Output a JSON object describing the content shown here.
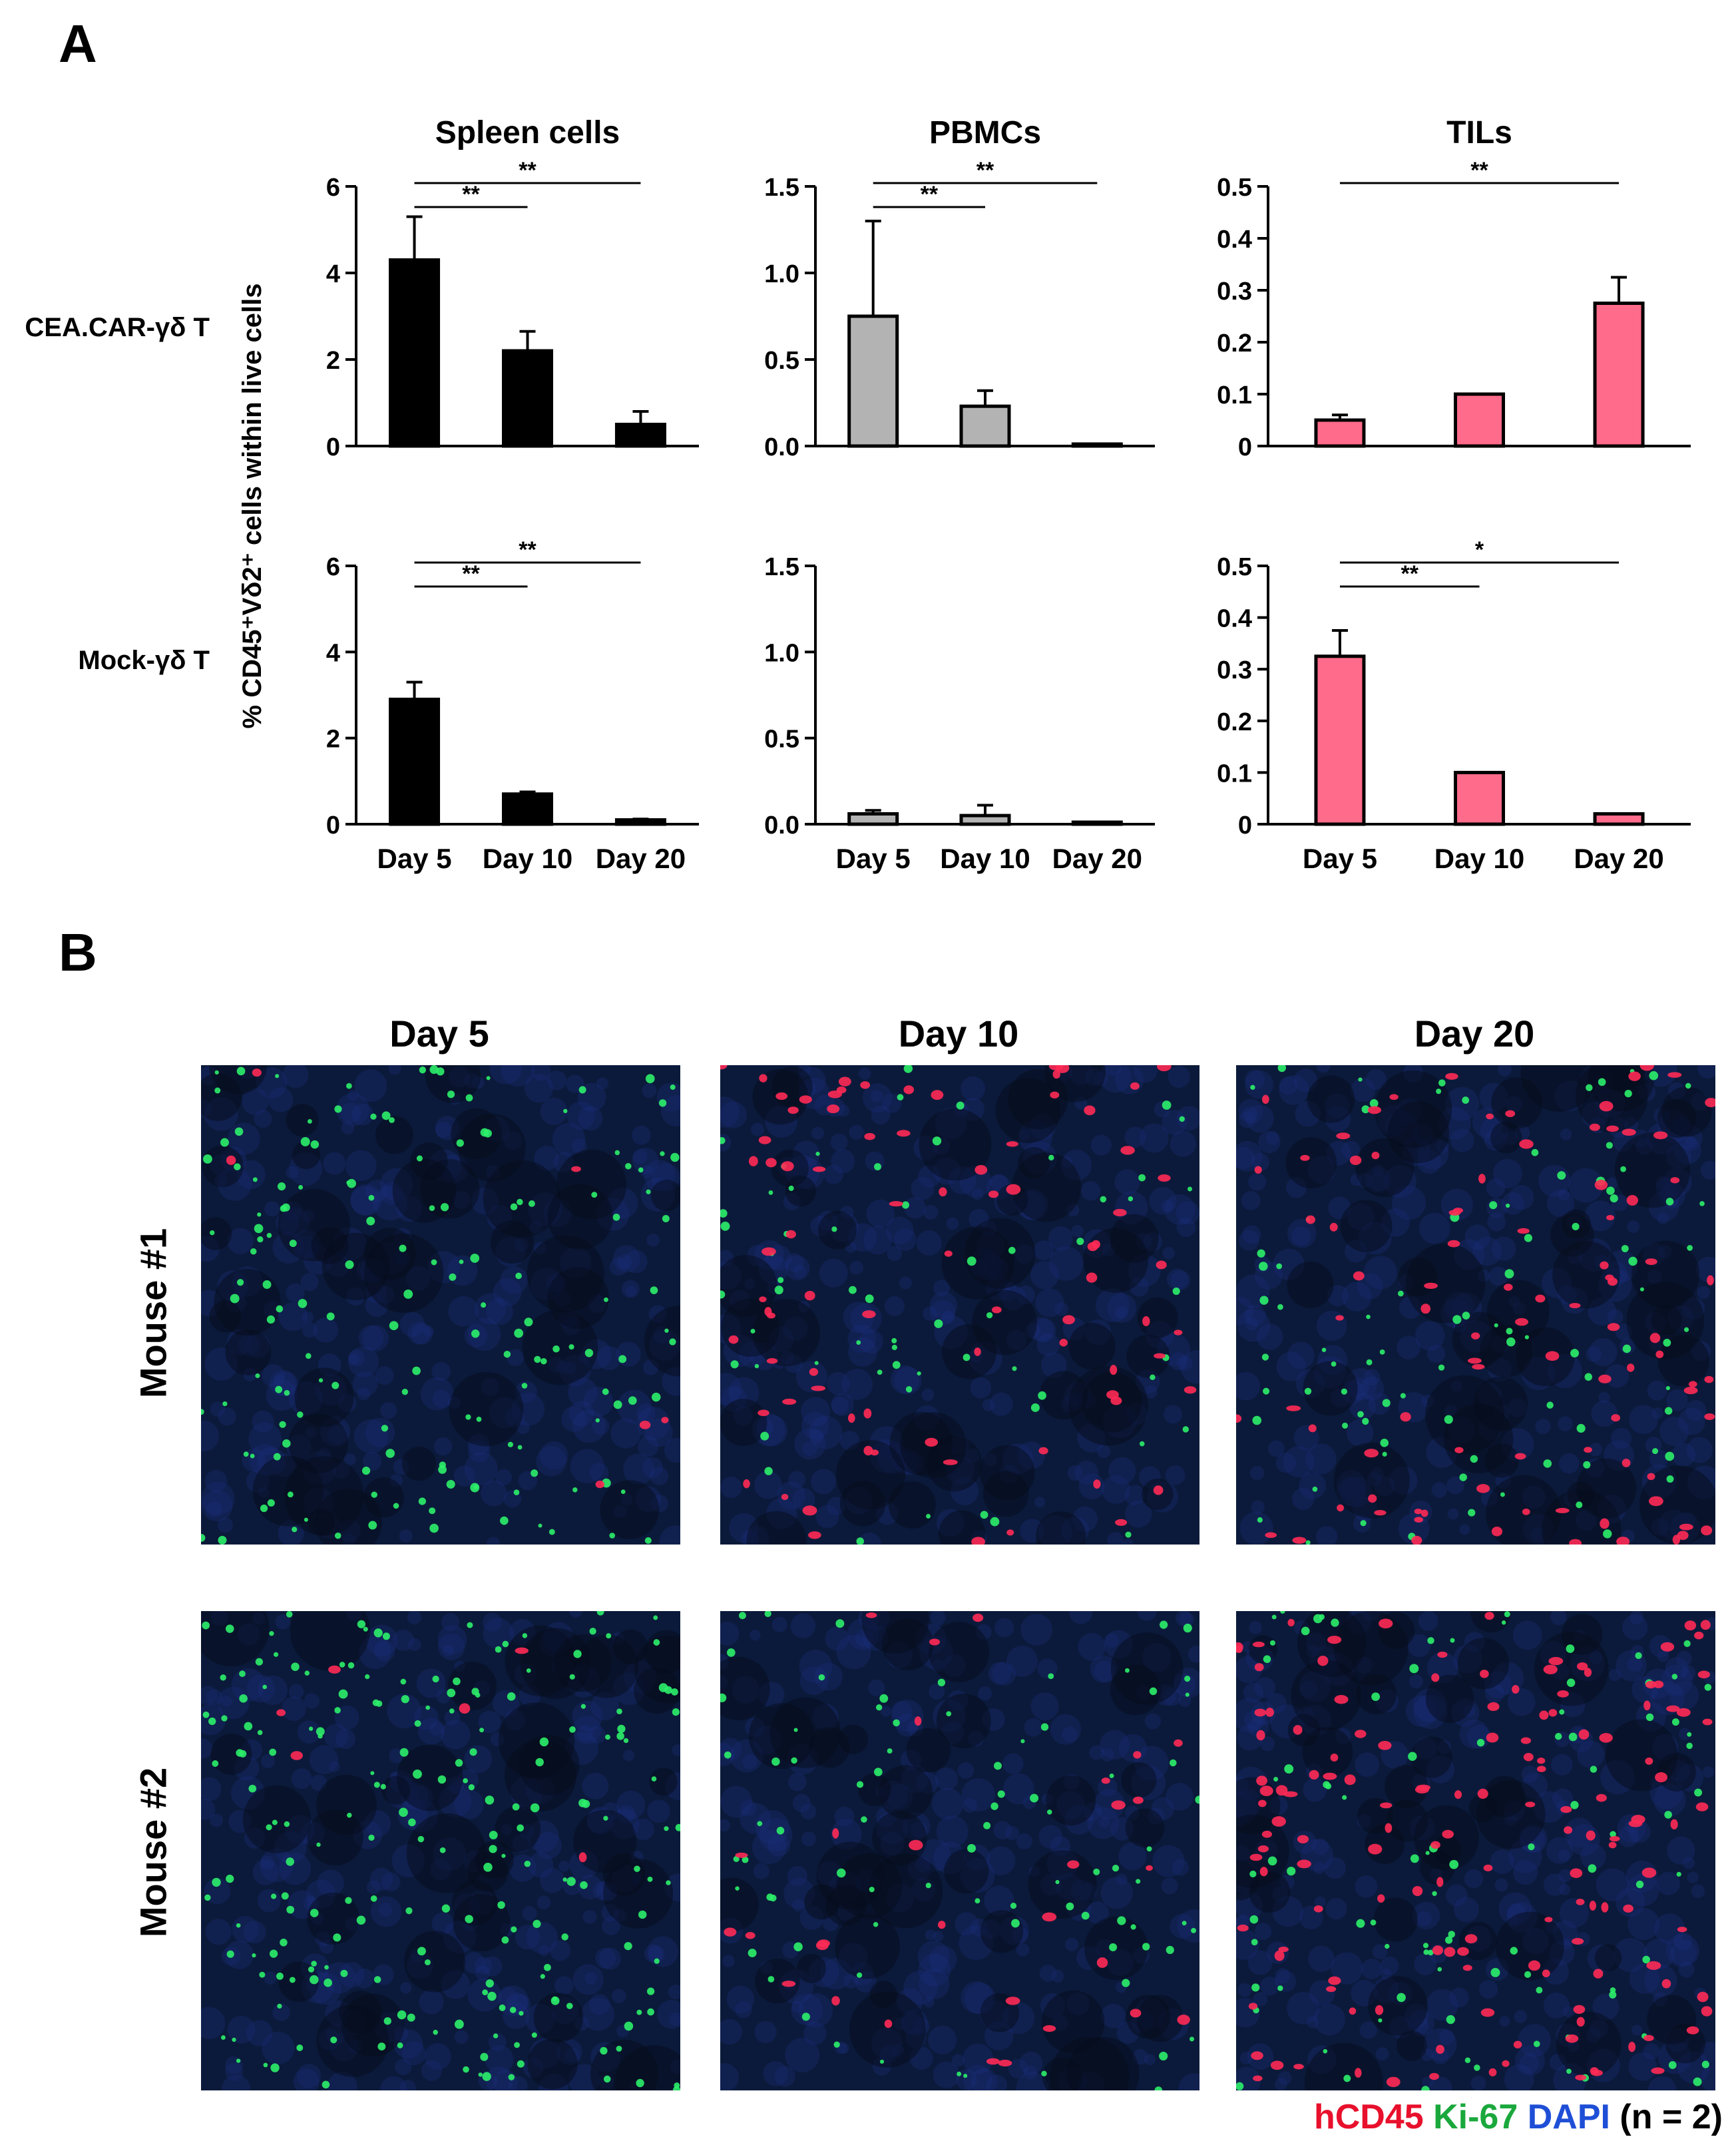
{
  "panel_a_label": "A",
  "panel_b_label": "B",
  "y_axis_label": "% CD45⁺Vδ2⁺ cells  within live cells",
  "colors": {
    "spleen": "#000000",
    "pbmc": "#b3b3b3",
    "til": "#ff6b8a",
    "hcd45": "#e8102c",
    "ki67": "#1aa83c",
    "dapi": "#1f4fd6"
  },
  "chart_data": [
    {
      "type": "bar",
      "row": "CEA.CAR-γδ T",
      "column_title": "Spleen cells",
      "row_label": "CEA.CAR-γδ T",
      "categories": [
        "Day 5",
        "Day 10",
        "Day 20"
      ],
      "values": [
        4.3,
        2.2,
        0.5
      ],
      "errors": [
        1.0,
        0.45,
        0.3
      ],
      "ylim": [
        0,
        6
      ],
      "yticks": [
        "0",
        "2",
        "4",
        "6"
      ],
      "ytick_values": [
        0,
        2,
        4,
        6
      ],
      "color_key": "spleen",
      "show_xticks": false,
      "significance": [
        {
          "from": 0,
          "to": 1,
          "label": "**"
        },
        {
          "from": 0,
          "to": 2,
          "label": "**"
        }
      ]
    },
    {
      "type": "bar",
      "row": "CEA.CAR-γδ T",
      "column_title": "PBMCs",
      "categories": [
        "Day 5",
        "Day 10",
        "Day 20"
      ],
      "values": [
        0.75,
        0.23,
        0.01
      ],
      "errors": [
        0.55,
        0.09,
        0.0
      ],
      "ylim": [
        0,
        1.5
      ],
      "yticks": [
        "0.0",
        "0.5",
        "1.0",
        "1.5"
      ],
      "ytick_values": [
        0,
        0.5,
        1.0,
        1.5
      ],
      "color_key": "pbmc",
      "show_xticks": false,
      "significance": [
        {
          "from": 0,
          "to": 1,
          "label": "**"
        },
        {
          "from": 0,
          "to": 2,
          "label": "**"
        }
      ]
    },
    {
      "type": "bar",
      "row": "CEA.CAR-γδ T",
      "column_title": "TILs",
      "categories": [
        "Day 5",
        "Day 10",
        "Day 20"
      ],
      "values": [
        0.05,
        0.1,
        0.275
      ],
      "errors": [
        0.01,
        0.0,
        0.05
      ],
      "ylim": [
        0,
        0.5
      ],
      "yticks": [
        "0",
        "0.1",
        "0.2",
        "0.3",
        "0.4",
        "0.5"
      ],
      "ytick_values": [
        0,
        0.1,
        0.2,
        0.3,
        0.4,
        0.5
      ],
      "color_key": "til",
      "show_xticks": false,
      "significance": [
        {
          "from": 0,
          "to": 2,
          "label": "**"
        }
      ]
    },
    {
      "type": "bar",
      "row": "Mock-γδ T",
      "row_label": "Mock-γδ T",
      "categories": [
        "Day 5",
        "Day 10",
        "Day 20"
      ],
      "values": [
        2.9,
        0.7,
        0.1
      ],
      "errors": [
        0.4,
        0.05,
        0.02
      ],
      "ylim": [
        0,
        6
      ],
      "yticks": [
        "0",
        "2",
        "4",
        "6"
      ],
      "ytick_values": [
        0,
        2,
        4,
        6
      ],
      "color_key": "spleen",
      "show_xticks": true,
      "significance": [
        {
          "from": 0,
          "to": 1,
          "label": "**"
        },
        {
          "from": 0,
          "to": 2,
          "label": "**"
        }
      ]
    },
    {
      "type": "bar",
      "row": "Mock-γδ T",
      "categories": [
        "Day 5",
        "Day 10",
        "Day 20"
      ],
      "values": [
        0.06,
        0.05,
        0.005
      ],
      "errors": [
        0.02,
        0.06,
        0.0
      ],
      "ylim": [
        0,
        1.5
      ],
      "yticks": [
        "0.0",
        "0.5",
        "1.0",
        "1.5"
      ],
      "ytick_values": [
        0,
        0.5,
        1.0,
        1.5
      ],
      "color_key": "pbmc",
      "show_xticks": true,
      "significance": []
    },
    {
      "type": "bar",
      "row": "Mock-γδ T",
      "categories": [
        "Day 5",
        "Day 10",
        "Day 20"
      ],
      "values": [
        0.325,
        0.1,
        0.02
      ],
      "errors": [
        0.05,
        0.0,
        0.0
      ],
      "ylim": [
        0,
        0.5
      ],
      "yticks": [
        "0",
        "0.1",
        "0.2",
        "0.3",
        "0.4",
        "0.5"
      ],
      "ytick_values": [
        0,
        0.1,
        0.2,
        0.3,
        0.4,
        0.5
      ],
      "color_key": "til",
      "show_xticks": true,
      "significance": [
        {
          "from": 0,
          "to": 1,
          "label": "**"
        },
        {
          "from": 0,
          "to": 2,
          "label": "*"
        }
      ]
    }
  ],
  "panel_b": {
    "columns": [
      "Day 5",
      "Day 10",
      "Day 20"
    ],
    "rows": [
      "Mouse #1",
      "Mouse #2"
    ],
    "legend": {
      "hcd45": "hCD45",
      "ki67": "Ki-67",
      "dapi": "DAPI",
      "n": "(n = 2)"
    }
  }
}
